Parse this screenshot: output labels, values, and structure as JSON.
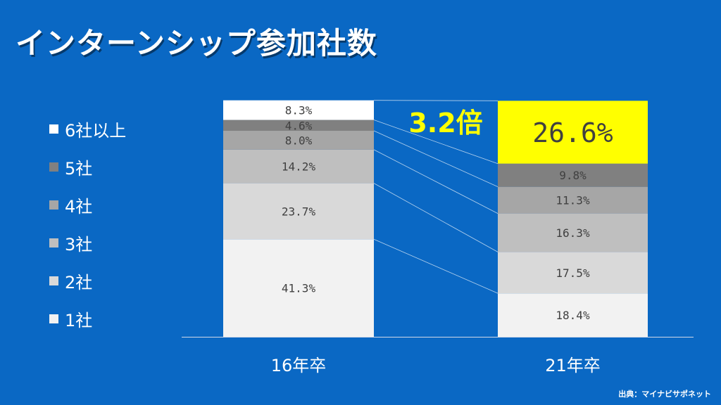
{
  "title": "インターンシップ参加社数",
  "source": "出典：マイナビサポネット",
  "colors": {
    "background": "#0a68c4",
    "highlight": "#ffff00",
    "callout": "#ffff00",
    "segment_6plus_16": "#ffffff",
    "segment_5": "#808080",
    "segment_4": "#a6a6a6",
    "segment_3": "#bfbfbf",
    "segment_2": "#d9d9d9",
    "segment_1": "#f2f2f2"
  },
  "chart_data": {
    "type": "bar",
    "stacked": true,
    "percent": true,
    "categories": [
      "16年卒",
      "21年卒"
    ],
    "series": [
      {
        "name": "1社",
        "values": [
          41.3,
          18.4
        ],
        "labels": [
          "41.3%",
          "18.4%"
        ]
      },
      {
        "name": "2社",
        "values": [
          23.7,
          17.5
        ],
        "labels": [
          "23.7%",
          "17.5%"
        ]
      },
      {
        "name": "3社",
        "values": [
          14.2,
          16.3
        ],
        "labels": [
          "14.2%",
          "16.3%"
        ]
      },
      {
        "name": "4社",
        "values": [
          8.0,
          11.3
        ],
        "labels": [
          "8.0%",
          "11.3%"
        ]
      },
      {
        "name": "5社",
        "values": [
          4.6,
          9.8
        ],
        "labels": [
          "4.6%",
          "9.8%"
        ]
      },
      {
        "name": "6社以上",
        "values": [
          8.3,
          26.6
        ],
        "labels": [
          "8.3%",
          "26.6%"
        ]
      }
    ],
    "legend_order": [
      "6社以上",
      "5社",
      "4社",
      "3社",
      "2社",
      "1社"
    ],
    "legend_position": "left",
    "callout": "3.2倍",
    "ylim": [
      0,
      100
    ]
  }
}
